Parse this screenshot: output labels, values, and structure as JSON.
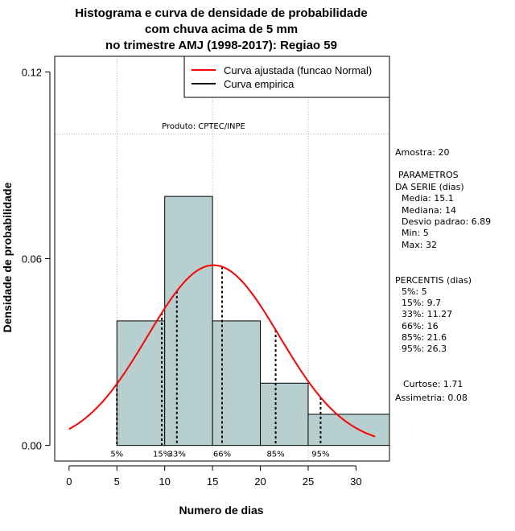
{
  "chart_data": {
    "type": "histogram",
    "title_lines": [
      "Histograma e curva de densidade de probabilidade",
      "com chuva acima de 5 mm",
      "no trimestre AMJ (1998-2017): Regiao 59"
    ],
    "xlabel": "Numero de dias",
    "ylabel": "Densidade de probabilidade",
    "xlim": [
      -1.5,
      33.5
    ],
    "ylim": [
      -0.005,
      0.125
    ],
    "x_ticks": [
      0,
      5,
      10,
      15,
      20,
      25,
      30
    ],
    "y_ticks": [
      0.0,
      0.06,
      0.12
    ],
    "y_tick_labels": [
      "0.00",
      "0.06",
      "0.12"
    ],
    "grid": true,
    "grid_x": [
      5,
      15,
      25
    ],
    "grid_y": [
      0.1
    ],
    "bins": [
      {
        "from": 5,
        "to": 10,
        "density": 0.04
      },
      {
        "from": 10,
        "to": 15,
        "density": 0.08
      },
      {
        "from": 15,
        "to": 20,
        "density": 0.04
      },
      {
        "from": 20,
        "to": 25,
        "density": 0.02
      },
      {
        "from": 25,
        "to": 33.5,
        "density": 0.01
      }
    ],
    "normal_fit": {
      "mean": 15.1,
      "sd": 6.89,
      "x_from": 0,
      "x_to": 32
    },
    "percentile_lines": [
      {
        "label": "5%",
        "value": 5
      },
      {
        "label": "15%",
        "value": 9.7
      },
      {
        "label": "33%",
        "value": 11.27
      },
      {
        "label": "66%",
        "value": 16
      },
      {
        "label": "85%",
        "value": 21.6
      },
      {
        "label": "95%",
        "value": 26.3
      }
    ],
    "annotation": "Produto: CPTEC/INPE",
    "legend": {
      "position": "top-right",
      "items": [
        {
          "label": "Curva ajustada (funcao Normal)",
          "color": "#ff0000"
        },
        {
          "label": "Curva empirica",
          "color": "#000000"
        }
      ]
    },
    "colors": {
      "bar_fill": "#b7cfcf",
      "fit_line": "#ff0000",
      "grid": "#b0b0b0"
    }
  },
  "side_panel": {
    "amostra": "Amostra: 20",
    "params_title_1": "PARAMETROS",
    "params_title_2": "DA SERIE (dias)",
    "media": "Media: 15.1",
    "mediana": "Mediana: 14",
    "desvio": "Desvio padrao: 6.89",
    "min": "Min: 5",
    "max": "Max: 32",
    "percentis_title": "PERCENTIS (dias)",
    "p5": "5%: 5",
    "p15": "15%: 9.7",
    "p33": "33%: 11.27",
    "p66": "66%: 16",
    "p85": "85%: 21.6",
    "p95": "95%: 26.3",
    "curtose": "Curtose: 1.71",
    "assimetria": "Assimetria: 0.08"
  }
}
